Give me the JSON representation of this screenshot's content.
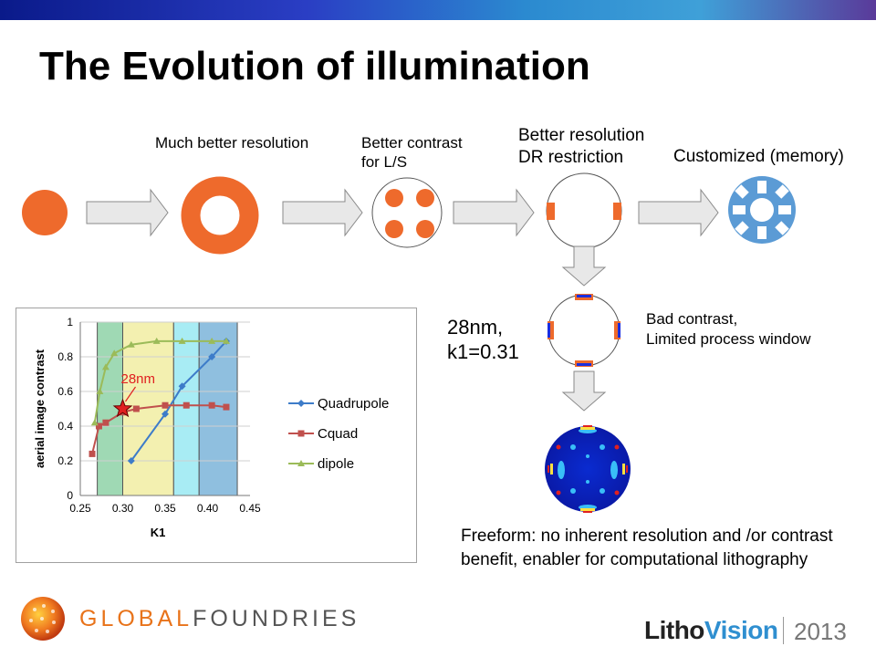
{
  "slide": {
    "title": "The Evolution of illumination",
    "stages": {
      "annular_label": "Much better resolution",
      "quad_label_1": "Better contrast",
      "quad_label_2": "for L/S",
      "dipole_label_1": "Better resolution",
      "dipole_label_2": "DR restriction",
      "custom_label": "Customized (memory)"
    },
    "cquad": {
      "node_label_1": "28nm,",
      "node_label_2": "k1=0.31",
      "side_label_1": "Bad contrast,",
      "side_label_2": "Limited process window"
    },
    "freeform_text": "Freeform: no inherent  resolution and /or contrast benefit, enabler for  computational lithography",
    "logo": {
      "company_part1": "GLOBAL",
      "company_part2": "FOUNDRIES",
      "event_part1": "Litho",
      "event_part2": "Vision",
      "year": "2013"
    },
    "colors": {
      "pupil_orange": "#ee6a2c",
      "custom_blue": "#5b9bd5",
      "arrow_fill": "#e8e8e8",
      "banner_blue": "#1a2ea8"
    }
  },
  "chart_data": {
    "type": "line",
    "xlabel": "K1",
    "ylabel": "aerial image contrast",
    "xlim": [
      0.25,
      0.45
    ],
    "ylim": [
      0,
      1
    ],
    "xticks": [
      "0.25",
      "0.30",
      "0.35",
      "0.40",
      "0.45"
    ],
    "yticks": [
      "0",
      "0.2",
      "0.4",
      "0.6",
      "0.8",
      "1"
    ],
    "grid": true,
    "legend": "right",
    "annotation": "28nm",
    "annotation_point": [
      0.3,
      0.5
    ],
    "bands": [
      {
        "from": 0.27,
        "to": 0.3,
        "color": "#9fd9b4"
      },
      {
        "from": 0.3,
        "to": 0.36,
        "color": "#f3f0b0"
      },
      {
        "from": 0.36,
        "to": 0.39,
        "color": "#a8ecf4"
      },
      {
        "from": 0.39,
        "to": 0.435,
        "color": "#8fbfdf"
      }
    ],
    "series": [
      {
        "name": "Quadrupole",
        "color": "#3d7cc9",
        "marker": "diamond",
        "x": [
          0.31,
          0.35,
          0.37,
          0.405,
          0.422
        ],
        "y": [
          0.2,
          0.47,
          0.63,
          0.8,
          0.89
        ]
      },
      {
        "name": "Cquad",
        "color": "#c0504d",
        "marker": "square",
        "x": [
          0.264,
          0.272,
          0.28,
          0.3,
          0.316,
          0.35,
          0.375,
          0.405,
          0.422
        ],
        "y": [
          0.24,
          0.4,
          0.42,
          0.48,
          0.5,
          0.52,
          0.52,
          0.52,
          0.51
        ]
      },
      {
        "name": "dipole",
        "color": "#9bbb59",
        "marker": "triangle",
        "x": [
          0.267,
          0.273,
          0.28,
          0.29,
          0.31,
          0.34,
          0.37,
          0.405,
          0.422
        ],
        "y": [
          0.42,
          0.6,
          0.74,
          0.82,
          0.87,
          0.89,
          0.89,
          0.89,
          0.89
        ]
      }
    ]
  }
}
